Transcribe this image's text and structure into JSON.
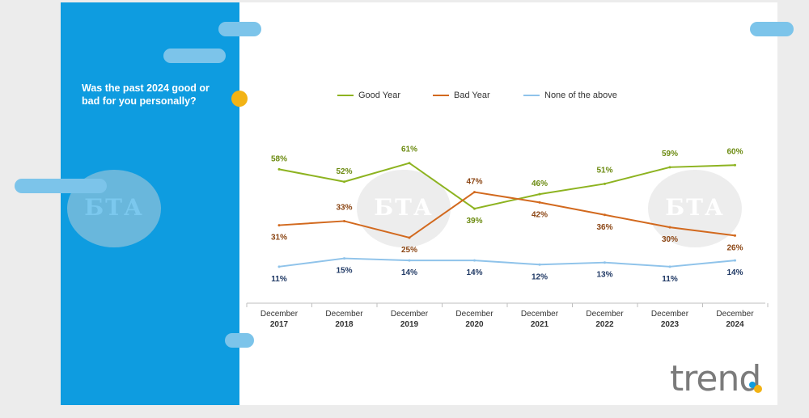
{
  "question": "Was the past 2024 good or bad for you personally?",
  "watermark_text": "БТА",
  "logo_text": "trend",
  "colors": {
    "panel": "#0e9ce0",
    "good": "#8db320",
    "bad": "#d2691e",
    "none": "#8fc3ea",
    "good_label": "#6b8a10",
    "bad_label": "#8b4513",
    "none_label": "#1f3864"
  },
  "chart_data": {
    "type": "line",
    "categories": [
      "December 2017",
      "December 2018",
      "December 2019",
      "December 2020",
      "December 2021",
      "December 2022",
      "December 2023",
      "December 2024"
    ],
    "category_lines": [
      [
        "December",
        "2017"
      ],
      [
        "December",
        "2018"
      ],
      [
        "December",
        "2019"
      ],
      [
        "December",
        "2020"
      ],
      [
        "December",
        "2021"
      ],
      [
        "December",
        "2022"
      ],
      [
        "December",
        "2023"
      ],
      [
        "December",
        "2024"
      ]
    ],
    "series": [
      {
        "name": "Good Year",
        "values": [
          58,
          52,
          61,
          39,
          46,
          51,
          59,
          60
        ],
        "labels": [
          "58%",
          "52%",
          "61%",
          "39%",
          "46%",
          "51%",
          "59%",
          "60%"
        ]
      },
      {
        "name": "Bad Year",
        "values": [
          31,
          33,
          25,
          47,
          42,
          36,
          30,
          26
        ],
        "labels": [
          "31%",
          "33%",
          "25%",
          "47%",
          "42%",
          "36%",
          "30%",
          "26%"
        ]
      },
      {
        "name": "None of the above",
        "values": [
          11,
          15,
          14,
          14,
          12,
          13,
          11,
          14
        ],
        "labels": [
          "11%",
          "15%",
          "14%",
          "14%",
          "12%",
          "13%",
          "11%",
          "14%"
        ]
      }
    ],
    "ylim": [
      0,
      80
    ],
    "legend": "top",
    "grid": false
  }
}
